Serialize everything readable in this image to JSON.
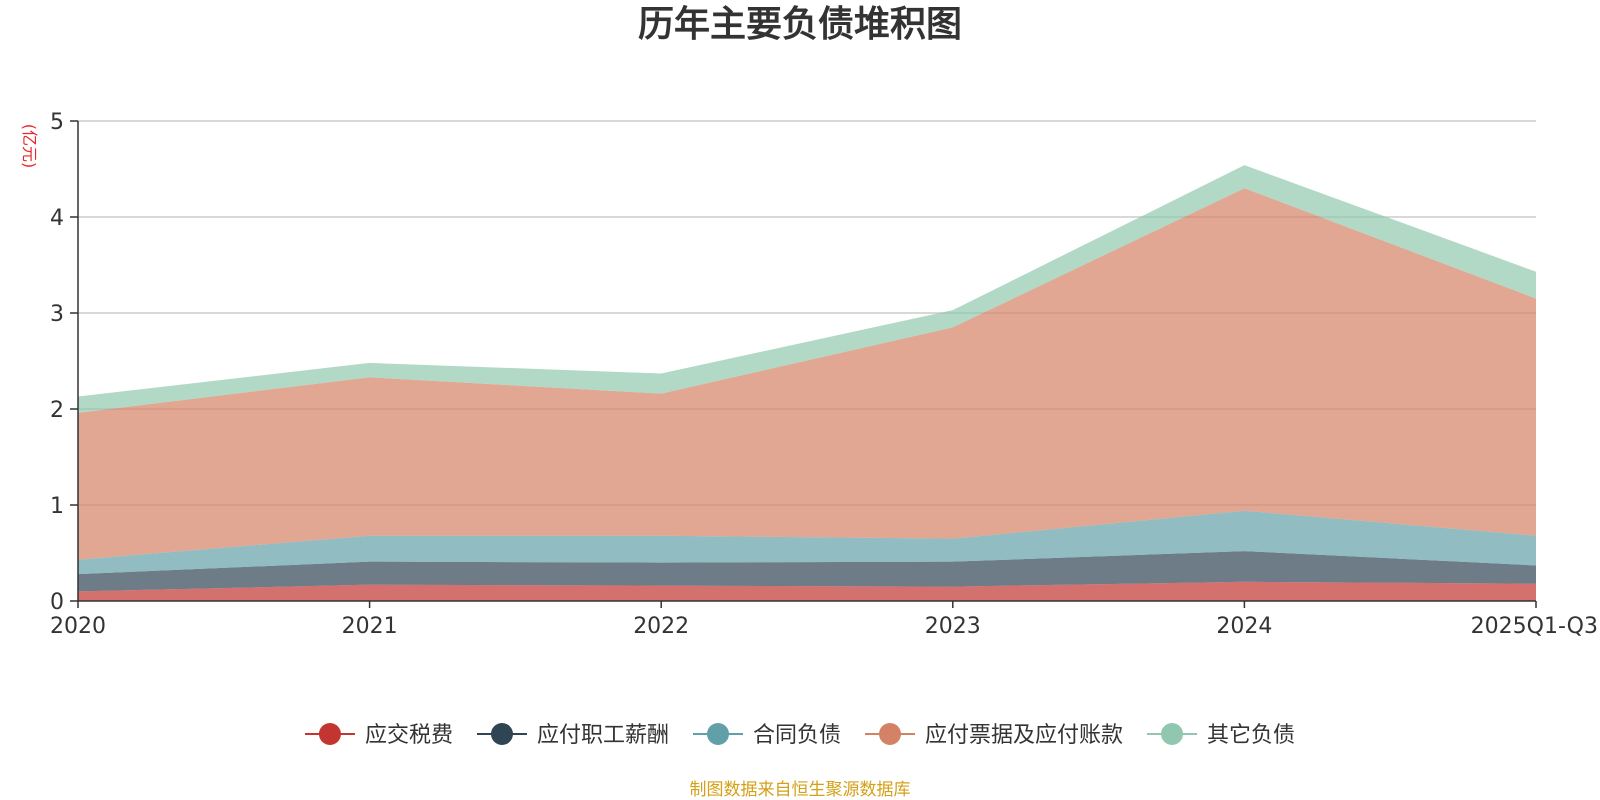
{
  "chart_data": {
    "type": "area",
    "stacked": true,
    "title": "历年主要负债堆积图",
    "ylabel": "(亿元)",
    "xlabel": "",
    "categories": [
      "2020",
      "2021",
      "2022",
      "2023",
      "2024",
      "2025Q1-Q3"
    ],
    "ylim": [
      0,
      5
    ],
    "yticks": [
      "0",
      "1",
      "2",
      "3",
      "4",
      "5"
    ],
    "grid": true,
    "legend_position": "bottom",
    "series": [
      {
        "name": "应交税费",
        "color": "#c23531",
        "values": [
          0.1,
          0.17,
          0.16,
          0.15,
          0.2,
          0.18
        ]
      },
      {
        "name": "应付职工薪酬",
        "color": "#2f4554",
        "values": [
          0.18,
          0.24,
          0.24,
          0.26,
          0.32,
          0.19
        ]
      },
      {
        "name": "合同负债",
        "color": "#61a0a8",
        "values": [
          0.15,
          0.27,
          0.28,
          0.24,
          0.42,
          0.31
        ]
      },
      {
        "name": "应付票据及应付账款",
        "color": "#d48265",
        "values": [
          1.53,
          1.65,
          1.48,
          2.2,
          3.36,
          2.47
        ]
      },
      {
        "name": "其它负债",
        "color": "#91c7ae",
        "values": [
          0.17,
          0.15,
          0.21,
          0.18,
          0.24,
          0.28
        ]
      }
    ]
  },
  "footer": {
    "source": "制图数据来自恒生聚源数据库"
  }
}
